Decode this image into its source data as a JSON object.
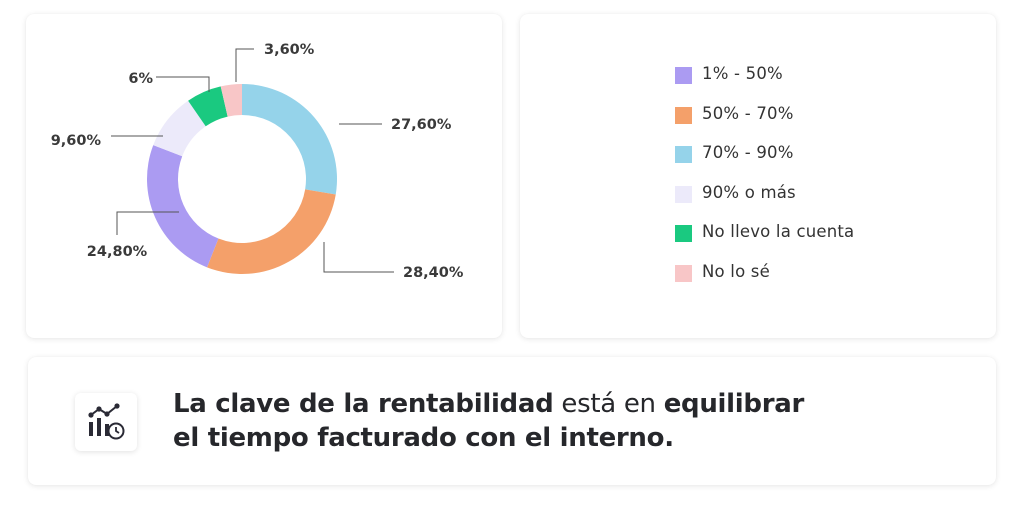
{
  "chart_data": {
    "type": "pie",
    "variant": "donut",
    "categories": [
      "1% - 50%",
      "50% - 70%",
      "70% - 90%",
      "90% o más",
      "No llevo la cuenta",
      "No lo sé"
    ],
    "values": [
      24.8,
      28.4,
      27.6,
      9.6,
      6,
      3.6
    ],
    "value_labels": [
      "24,80%",
      "28,40%",
      "27,60%",
      "9,60%",
      "6%",
      "3,60%"
    ],
    "colors": [
      "#AB9BF2",
      "#F4A06A",
      "#95D3EA",
      "#ECEAFA",
      "#1AC980",
      "#F8C6C7"
    ],
    "legend_position": "right",
    "title": ""
  },
  "note": {
    "icon": "analytics-clock-icon",
    "part1": "La clave de la rentabilidad",
    "part2": " está en ",
    "part3": "equilibrar",
    "line2": "el tiempo facturado con el interno."
  }
}
